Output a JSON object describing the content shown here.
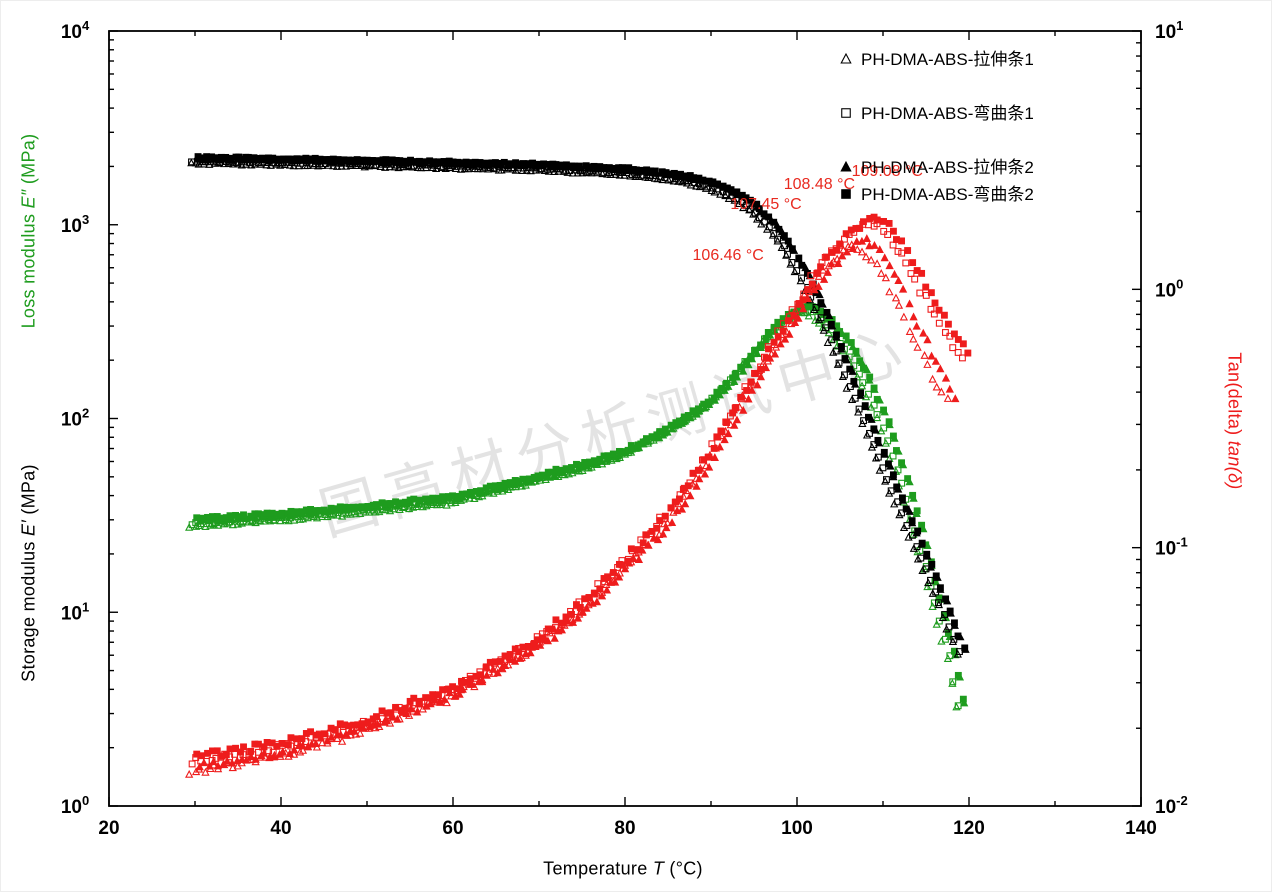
{
  "watermark": "国高材分析测试中心",
  "axis_titles": {
    "loss": {
      "prefix": "Loss modulus ",
      "symbol": "E″",
      "suffix": " (MPa)",
      "color": "#1e9c1e"
    },
    "storage": {
      "prefix": "Storage modulus ",
      "symbol": "E′",
      "suffix": " (MPa)",
      "color": "#000000"
    },
    "tand": {
      "prefix": "Tan(delta) ",
      "symbol": "tan(δ)",
      "suffix": "",
      "color": "#ee1c1c"
    },
    "x": {
      "prefix": "Temperature ",
      "symbol": "T",
      "suffix": " (°C)",
      "color": "#000000"
    }
  },
  "chart_data": {
    "type": "scatter",
    "title": "",
    "xlabel": "Temperature T (°C)",
    "xlim": [
      20,
      140
    ],
    "x_major_ticks": [
      20,
      40,
      60,
      80,
      100,
      120,
      140
    ],
    "x_minor_step": 10,
    "left_axis": {
      "scale": "log",
      "lim": [
        1,
        10000
      ],
      "labels": [
        "Loss modulus E″ (MPa)",
        "Storage modulus E′ (MPa)"
      ]
    },
    "right_axis": {
      "scale": "log",
      "lim": [
        0.01,
        10
      ],
      "label": "Tan(delta) tan(δ)"
    },
    "colors": {
      "storage": "#000000",
      "loss": "#1e9c1e",
      "tand": "#ee1c1c",
      "annotation": "#e82a20",
      "watermark": "#c8c8c8"
    },
    "legend": [
      {
        "label": "PH-DMA-ABS-拉伸条1",
        "marker": "triangle",
        "filled": false,
        "tshift": -0.55,
        "tand_curve": "tand_triangle",
        "peak_label": "106.46 °C"
      },
      {
        "label": "PH-DMA-ABS-弯曲条1",
        "marker": "square",
        "filled": false,
        "tshift": -0.32,
        "tand_curve": "tand_square",
        "peak_label": "108.48 °C"
      },
      {
        "label": "PH-DMA-ABS-拉伸条2",
        "marker": "triangle",
        "filled": true,
        "tshift": 0.45,
        "tand_curve": "tand_triangle",
        "peak_label": "107.45 °C"
      },
      {
        "label": "PH-DMA-ABS-弯曲条2",
        "marker": "square",
        "filled": true,
        "tshift": 0.28,
        "tand_curve": "tand_square",
        "peak_label": "109.08 °C"
      }
    ],
    "annotations": [
      {
        "text": "106.46 °C",
        "T": 92.0,
        "value": 1.3
      },
      {
        "text": "107.45 °C",
        "T": 96.4,
        "value": 2.05
      },
      {
        "text": "108.48 °C",
        "T": 102.6,
        "value": 2.45
      },
      {
        "text": "109.08 °C",
        "T": 110.5,
        "value": 2.75
      }
    ],
    "curves": {
      "storage": [
        [
          30,
          2150
        ],
        [
          50,
          2080
        ],
        [
          70,
          1980
        ],
        [
          80,
          1880
        ],
        [
          84,
          1800
        ],
        [
          87,
          1720
        ],
        [
          89,
          1640
        ],
        [
          91,
          1540
        ],
        [
          93,
          1400
        ],
        [
          95,
          1220
        ],
        [
          97,
          1000
        ],
        [
          99,
          760
        ],
        [
          101,
          530
        ],
        [
          103,
          350
        ],
        [
          105,
          215
        ],
        [
          107,
          130
        ],
        [
          109,
          78
        ],
        [
          111,
          47
        ],
        [
          113,
          29
        ],
        [
          115,
          18
        ],
        [
          117,
          11
        ],
        [
          119,
          6.5
        ],
        [
          119.6,
          5.5
        ]
      ],
      "loss": [
        [
          30,
          29
        ],
        [
          40,
          31
        ],
        [
          50,
          34
        ],
        [
          60,
          38
        ],
        [
          65,
          43
        ],
        [
          70,
          49
        ],
        [
          75,
          56
        ],
        [
          80,
          66
        ],
        [
          84,
          82
        ],
        [
          88,
          105
        ],
        [
          90,
          122
        ],
        [
          92,
          150
        ],
        [
          94,
          190
        ],
        [
          96,
          245
        ],
        [
          98,
          310
        ],
        [
          100,
          358
        ],
        [
          101,
          368
        ],
        [
          102,
          358
        ],
        [
          104,
          300
        ],
        [
          106,
          230
        ],
        [
          108,
          160
        ],
        [
          110,
          100
        ],
        [
          112,
          55
        ],
        [
          114,
          28
        ],
        [
          116,
          13
        ],
        [
          118,
          6
        ],
        [
          119.2,
          3.2
        ]
      ],
      "tand_triangle": [
        [
          30,
          0.014
        ],
        [
          40,
          0.016
        ],
        [
          50,
          0.02
        ],
        [
          60,
          0.027
        ],
        [
          70,
          0.042
        ],
        [
          75,
          0.057
        ],
        [
          80,
          0.083
        ],
        [
          85,
          0.125
        ],
        [
          90,
          0.22
        ],
        [
          94,
          0.38
        ],
        [
          98,
          0.62
        ],
        [
          100,
          0.8
        ],
        [
          102,
          1.02
        ],
        [
          104,
          1.25
        ],
        [
          106,
          1.47
        ],
        [
          107,
          1.53
        ],
        [
          108,
          1.5
        ],
        [
          110,
          1.28
        ],
        [
          112,
          0.95
        ],
        [
          114,
          0.68
        ],
        [
          116,
          0.5
        ],
        [
          118.5,
          0.36
        ]
      ],
      "tand_square": [
        [
          30,
          0.015
        ],
        [
          40,
          0.017
        ],
        [
          50,
          0.021
        ],
        [
          60,
          0.028
        ],
        [
          70,
          0.044
        ],
        [
          75,
          0.06
        ],
        [
          80,
          0.088
        ],
        [
          85,
          0.135
        ],
        [
          90,
          0.235
        ],
        [
          94,
          0.4
        ],
        [
          98,
          0.66
        ],
        [
          100,
          0.85
        ],
        [
          102,
          1.1
        ],
        [
          104,
          1.38
        ],
        [
          106,
          1.62
        ],
        [
          108,
          1.82
        ],
        [
          108.8,
          1.86
        ],
        [
          110,
          1.78
        ],
        [
          112,
          1.45
        ],
        [
          114,
          1.1
        ],
        [
          116,
          0.85
        ],
        [
          118,
          0.65
        ],
        [
          119.8,
          0.55
        ]
      ]
    }
  }
}
